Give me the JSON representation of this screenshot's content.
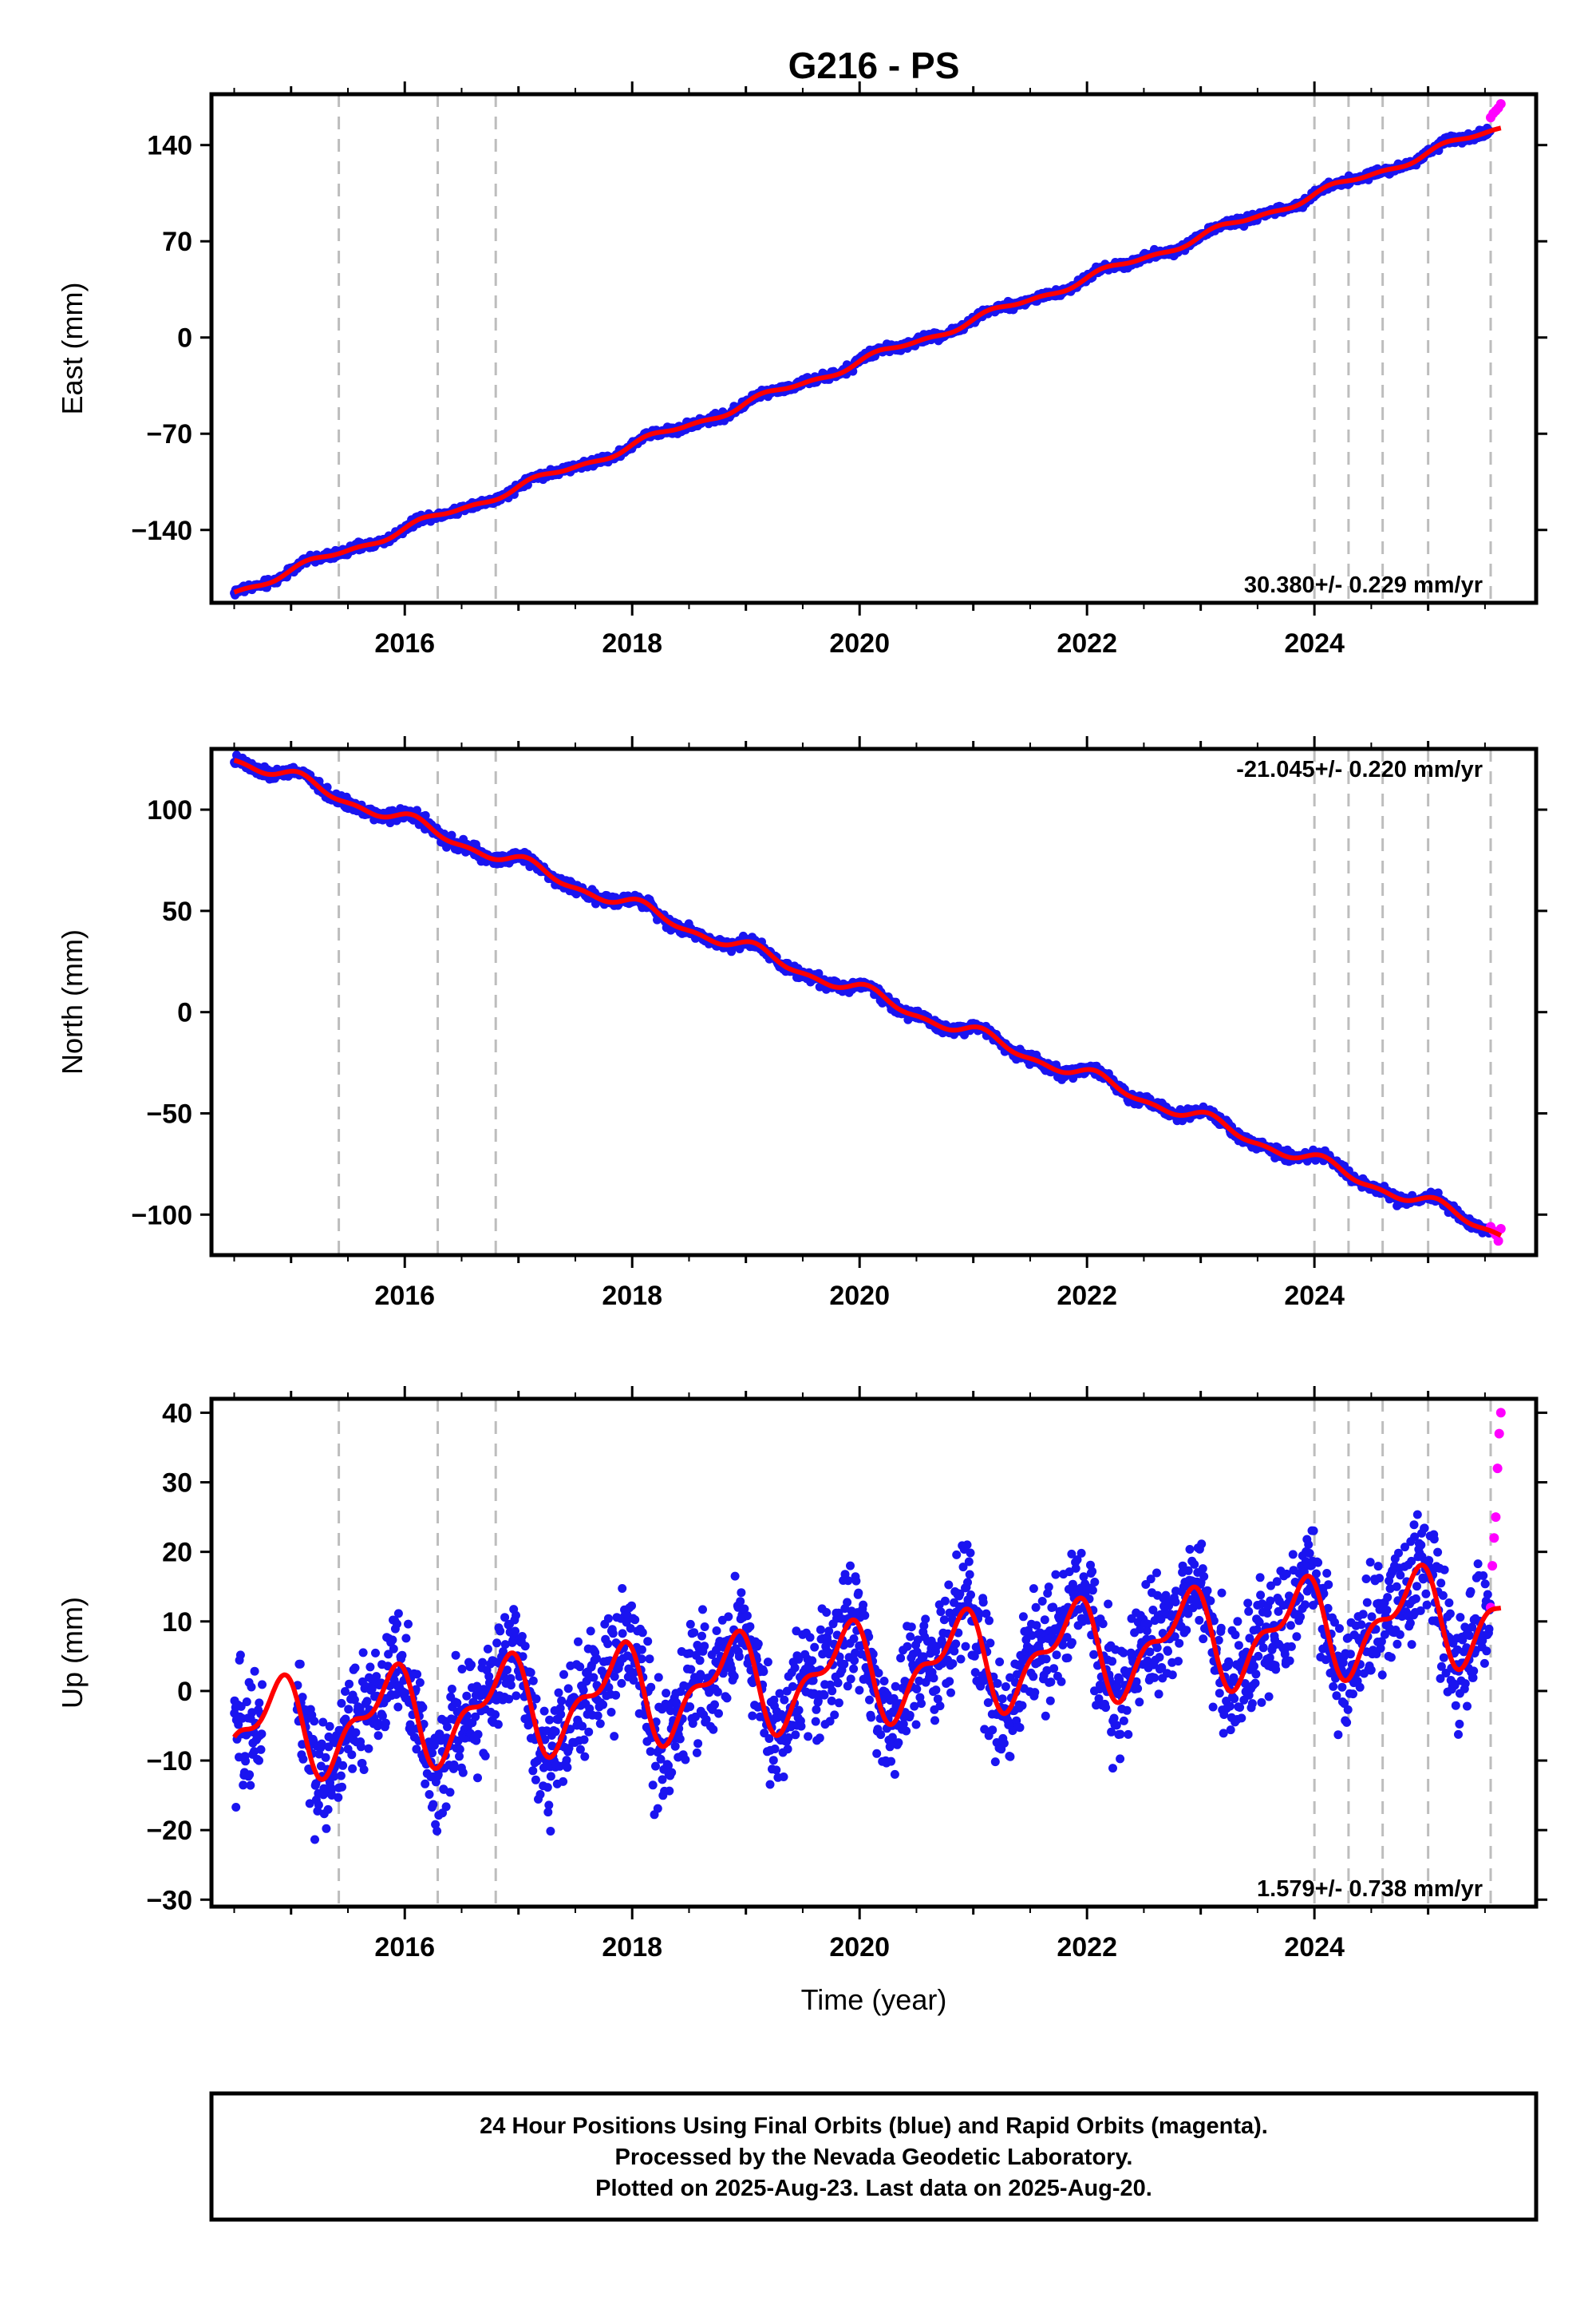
{
  "chart_data": {
    "title": "G216 - PS",
    "type": "scatter",
    "xlim": [
      2014.3,
      2025.95
    ],
    "xticks": [
      "2016",
      "2018",
      "2020",
      "2022",
      "2024"
    ],
    "xlabel": "Time (year)",
    "vlines": [
      2015.42,
      2016.29,
      2016.8,
      2024.0,
      2024.3,
      2024.6,
      2025.0,
      2025.55
    ],
    "colors": {
      "final": "#1a14f0",
      "rapid": "#ff00ff",
      "model": "#ff0000",
      "vline": "#bdbdbd"
    },
    "legend": "none",
    "panels": [
      {
        "name": "east",
        "ylabel": "East (mm)",
        "ylim": [
          -193,
          177
        ],
        "yticks": [
          "140",
          "70",
          "0",
          "−70",
          "−140"
        ],
        "rate": "30.380+/- 0.229 mm/yr",
        "rate_position": "bottom-right",
        "model": {
          "start_year": 2014.5,
          "start_value": -185,
          "slope": 30.38,
          "annual_amp": 2.5,
          "annual_phase": 0.2,
          "noise": 2.0
        },
        "final_range": [
          2014.5,
          2025.55
        ],
        "rapid_range": [
          2025.55,
          2025.64
        ],
        "rapid_sample": [
          160,
          163,
          165,
          167,
          170
        ]
      },
      {
        "name": "north",
        "ylabel": "North (mm)",
        "ylim": [
          -120,
          130
        ],
        "yticks": [
          "100",
          "50",
          "0",
          "−50",
          "−100"
        ],
        "rate": "-21.045+/- 0.220 mm/yr",
        "rate_position": "top-right",
        "model": {
          "start_year": 2014.5,
          "start_value": 126,
          "slope": -21.045,
          "annual_amp": 3.0,
          "annual_phase": 1.0,
          "noise": 1.8
        },
        "final_range": [
          2014.5,
          2025.55
        ],
        "rapid_range": [
          2025.55,
          2025.64
        ],
        "rapid_sample": [
          -106,
          -108,
          -110,
          -113,
          -107
        ]
      },
      {
        "name": "up",
        "ylabel": "Up (mm)",
        "ylim": [
          -31,
          42
        ],
        "yticks": [
          "40",
          "30",
          "20",
          "10",
          "0",
          "−10",
          "−20",
          "−30"
        ],
        "rate": "1.579+/- 0.738 mm/yr",
        "rate_position": "bottom-right",
        "model": {
          "start_year": 2014.5,
          "start_value": -6,
          "slope": 1.579,
          "annual_amp": 6.0,
          "annual_phase": 2.5,
          "noise": 5.5
        },
        "final_range": [
          2014.5,
          2025.55
        ],
        "rapid_range": [
          2025.55,
          2025.64
        ],
        "rapid_sample": [
          12,
          18,
          22,
          25,
          32,
          37,
          40
        ]
      }
    ],
    "footer_lines": [
      "24 Hour Positions Using Final Orbits (blue) and Rapid Orbits (magenta).",
      "Processed by the Nevada Geodetic Laboratory.",
      "Plotted on 2025-Aug-23. Last data on 2025-Aug-20."
    ]
  }
}
